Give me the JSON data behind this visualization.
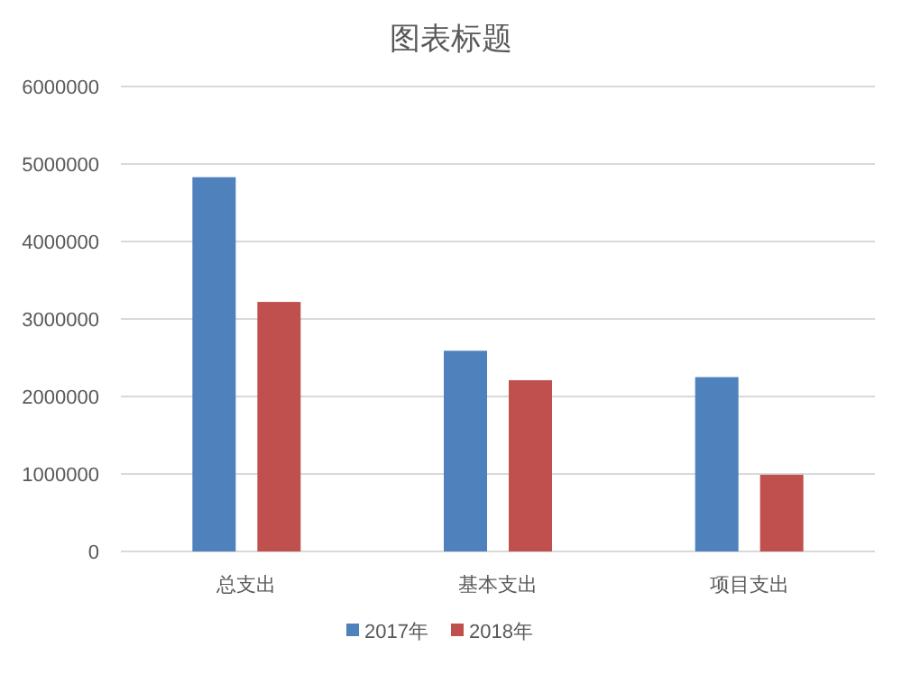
{
  "chart_data": {
    "type": "bar",
    "title": "图表标题",
    "categories": [
      "总支出",
      "基本支出",
      "项目支出"
    ],
    "series": [
      {
        "name": "2017年",
        "color": "#4f81bd",
        "values": [
          4830000,
          2590000,
          2250000
        ]
      },
      {
        "name": "2018年",
        "color": "#c0504d",
        "values": [
          3220000,
          2210000,
          990000
        ]
      }
    ],
    "ylim": [
      0,
      6000000
    ],
    "yticks": [
      0,
      1000000,
      2000000,
      3000000,
      4000000,
      5000000,
      6000000
    ],
    "grid": "y",
    "legend": "bottom"
  }
}
